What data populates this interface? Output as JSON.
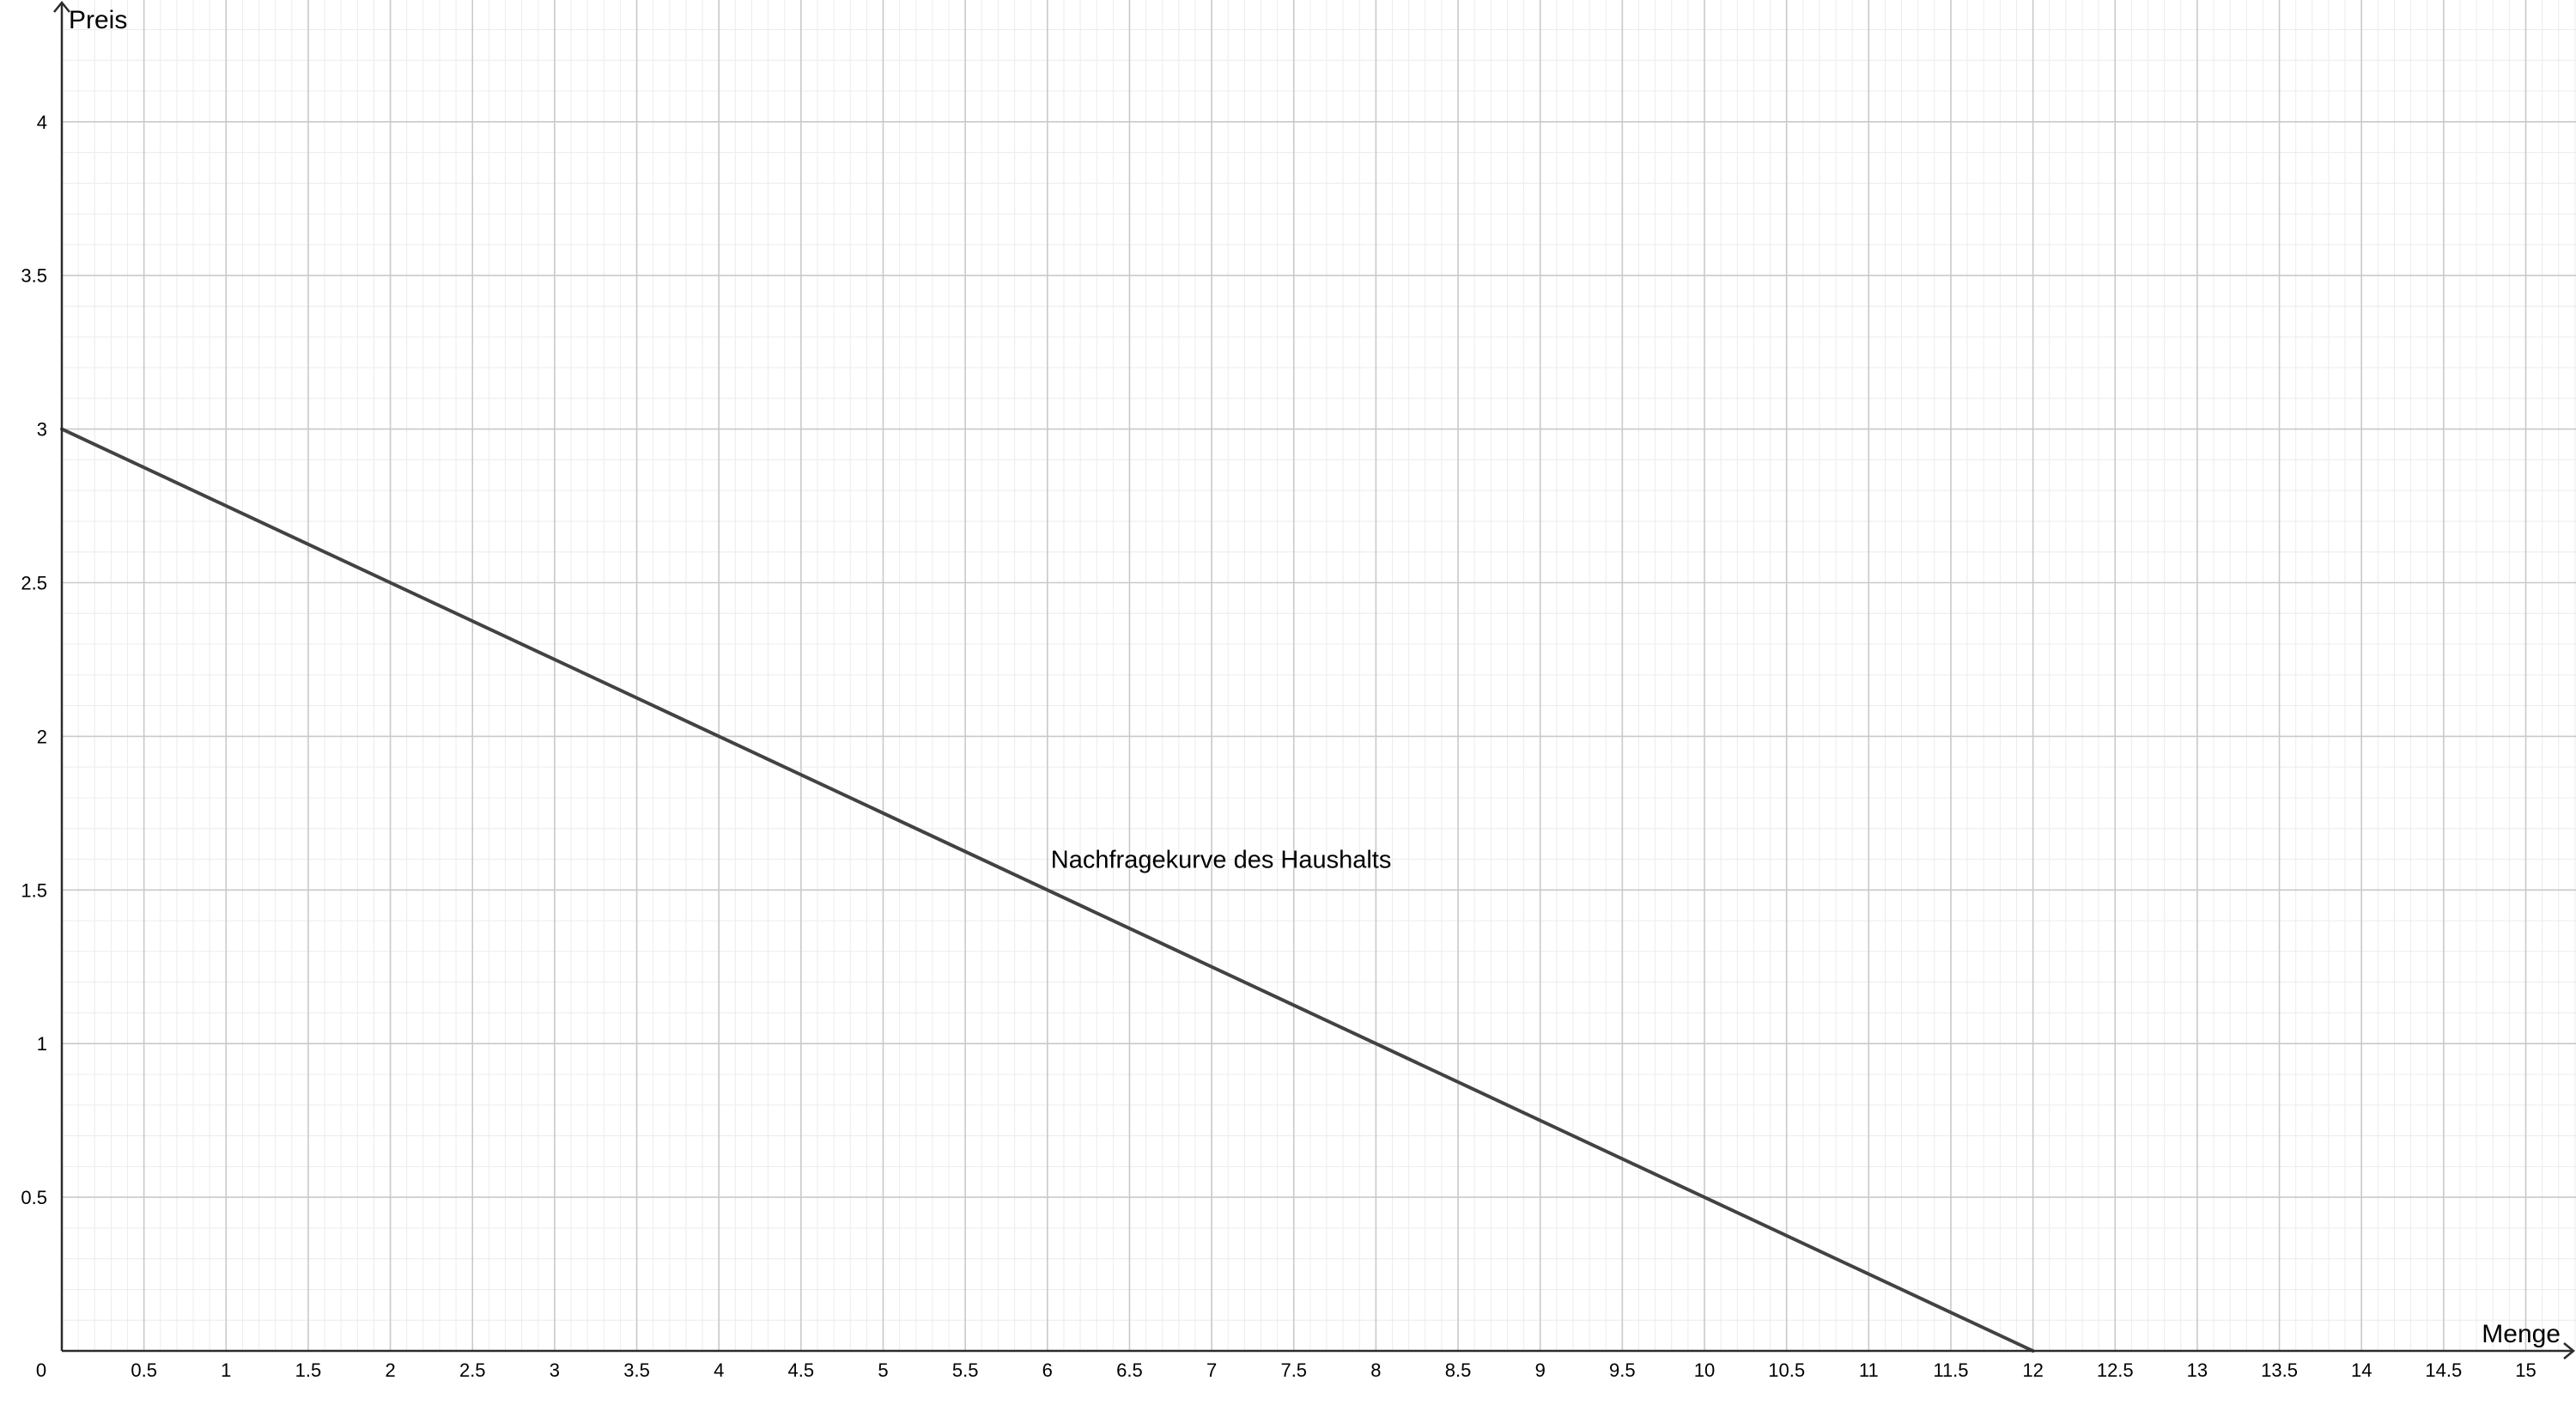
{
  "chart_data": {
    "type": "line",
    "title": "",
    "xlabel": "Menge",
    "ylabel": "Preis",
    "xlim": [
      0,
      15.65
    ],
    "ylim": [
      0,
      4.4
    ],
    "grid": true,
    "x_ticks": [
      0,
      0.5,
      1,
      1.5,
      2,
      2.5,
      3,
      3.5,
      4,
      4.5,
      5,
      5.5,
      6,
      6.5,
      7,
      7.5,
      8,
      8.5,
      9,
      9.5,
      10,
      10.5,
      11,
      11.5,
      12,
      12.5,
      13,
      13.5,
      14,
      14.5,
      15
    ],
    "x_tick_labels": [
      "0",
      "0.5",
      "1",
      "1.5",
      "2",
      "2.5",
      "3",
      "3.5",
      "4",
      "4.5",
      "5",
      "5.5",
      "6",
      "6.5",
      "7",
      "7.5",
      "8",
      "8.5",
      "9",
      "9.5",
      "10",
      "10.5",
      "11",
      "11.5",
      "12",
      "12.5",
      "13",
      "13.5",
      "14",
      "14.5",
      "15"
    ],
    "y_ticks": [
      0.5,
      1,
      1.5,
      2,
      2.5,
      3,
      3.5,
      4
    ],
    "y_tick_labels": [
      "0.5",
      "1",
      "1.5",
      "2",
      "2.5",
      "3",
      "3.5",
      "4"
    ],
    "series": [
      {
        "x": [
          0,
          12
        ],
        "y": [
          3,
          0
        ]
      }
    ],
    "annotations": [
      {
        "text": "Nachfragekurve des Haushalts",
        "x": 6,
        "y": 1.5
      }
    ],
    "colors": {
      "line": "#424242",
      "axis": "#2b2b2b",
      "grid_major": "#c9c9c9",
      "grid_minor": "#ececec"
    }
  }
}
